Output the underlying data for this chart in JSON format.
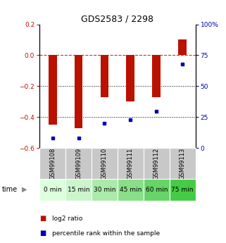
{
  "title": "GDS2583 / 2298",
  "samples": [
    "GSM99108",
    "GSM99109",
    "GSM99110",
    "GSM99111",
    "GSM99112",
    "GSM99113"
  ],
  "time_labels": [
    "0 min",
    "15 min",
    "30 min",
    "45 min",
    "60 min",
    "75 min"
  ],
  "log2_ratio": [
    -0.45,
    -0.47,
    -0.27,
    -0.3,
    -0.27,
    0.1
  ],
  "percentile_rank": [
    8,
    8,
    20,
    23,
    30,
    68
  ],
  "ylim_left": [
    -0.6,
    0.2
  ],
  "ylim_right": [
    0,
    100
  ],
  "yticks_left": [
    -0.6,
    -0.4,
    -0.2,
    0.0,
    0.2
  ],
  "yticks_right": [
    0,
    25,
    50,
    75,
    100
  ],
  "bar_color": "#bb1100",
  "dot_color": "#0000bb",
  "green_colors": [
    "#ddffdd",
    "#ccf5cc",
    "#aaeaaa",
    "#88df88",
    "#66d466",
    "#44cc44"
  ],
  "gray_color": "#c8c8c8",
  "title_fontsize": 9,
  "tick_fontsize": 6.5,
  "legend_fontsize": 6.5,
  "sample_fontsize": 6.0,
  "time_fontsize": 6.5
}
